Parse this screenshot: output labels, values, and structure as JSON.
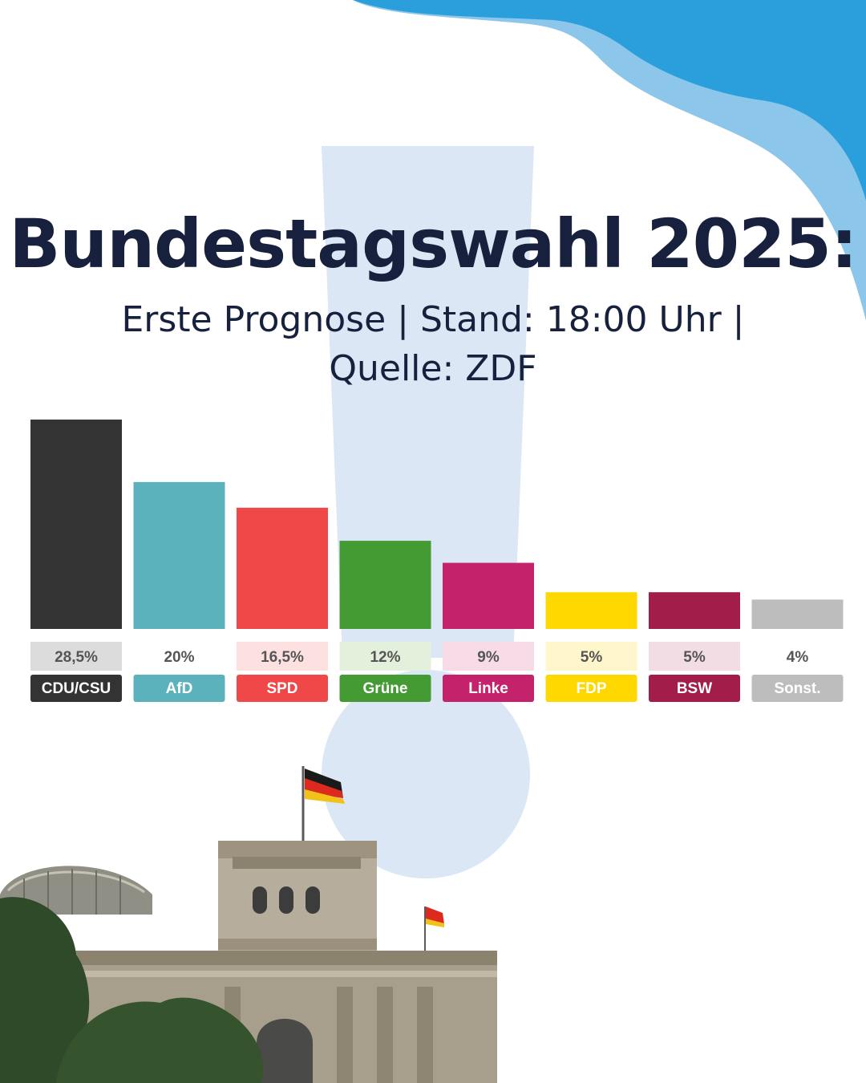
{
  "title": "Bundestagswahl 2025:",
  "subtitle_line1": "Erste Prognose | Stand: 18:00 Uhr |",
  "subtitle_line2": "Quelle: ZDF",
  "colors": {
    "accent_blue": "#2a9fdc",
    "light_blue": "#8cc6ea",
    "exclamation": "#dbe7f4",
    "title": "#17213d"
  },
  "chart_data": {
    "type": "bar",
    "title": "Bundestagswahl 2025:",
    "subtitle": "Erste Prognose | Stand: 18:00 Uhr | Quelle: ZDF",
    "categories": [
      "CDU/CSU",
      "AfD",
      "SPD",
      "Grüne",
      "Linke",
      "FDP",
      "BSW",
      "Sonst."
    ],
    "values": [
      28.5,
      20,
      16.5,
      12,
      9,
      5,
      5,
      4
    ],
    "value_labels": [
      "28,5%",
      "20%",
      "16,5%",
      "12%",
      "9%",
      "5%",
      "5%",
      "4%"
    ],
    "colors": [
      "#333333",
      "#5bb2bd",
      "#f04848",
      "#449b33",
      "#c4226a",
      "#ffd800",
      "#a21d4a",
      "#bdbdbd"
    ],
    "value_label_bg": [
      "#dcdcdc",
      "#ffffff",
      "#fde0e0",
      "#e3f0dc",
      "#f7dce8",
      "#fff6cc",
      "#f3dde4",
      "#ffffff"
    ],
    "grid": false,
    "legend": "none"
  }
}
